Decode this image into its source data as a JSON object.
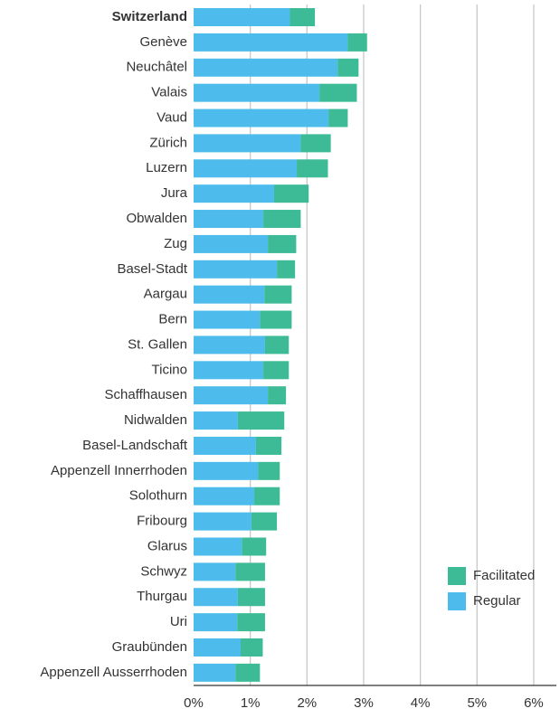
{
  "chart_data": {
    "type": "stacked_barh",
    "categories": [
      "Switzerland",
      "Genève",
      "Neuchâtel",
      "Valais",
      "Vaud",
      "Zürich",
      "Luzern",
      "Jura",
      "Obwalden",
      "Zug",
      "Basel-Stadt",
      "Aargau",
      "Bern",
      "St. Gallen",
      "Ticino",
      "Schaffhausen",
      "Nidwalden",
      "Basel-Landschaft",
      "Appenzell Innerrhoden",
      "Solothurn",
      "Fribourg",
      "Glarus",
      "Schwyz",
      "Thurgau",
      "Uri",
      "Graubünden",
      "Appenzell Ausserrhoden"
    ],
    "series": [
      {
        "name": "Regular",
        "color": "#4dbbeb",
        "values": [
          1.7,
          2.72,
          2.54,
          2.22,
          2.38,
          1.89,
          1.82,
          1.42,
          1.23,
          1.31,
          1.47,
          1.25,
          1.17,
          1.26,
          1.23,
          1.31,
          0.78,
          1.1,
          1.14,
          1.07,
          1.02,
          0.85,
          0.74,
          0.78,
          0.77,
          0.83,
          0.74
        ]
      },
      {
        "name": "Facilitated",
        "color": "#3dbb96",
        "values": [
          0.44,
          0.34,
          0.37,
          0.66,
          0.34,
          0.53,
          0.55,
          0.61,
          0.66,
          0.5,
          0.32,
          0.48,
          0.56,
          0.42,
          0.45,
          0.32,
          0.82,
          0.45,
          0.38,
          0.45,
          0.45,
          0.43,
          0.52,
          0.48,
          0.49,
          0.39,
          0.43
        ]
      }
    ],
    "xlim": [
      0,
      6.4
    ],
    "xticks": [
      {
        "value": 0,
        "label": "0%"
      },
      {
        "value": 1,
        "label": "1%"
      },
      {
        "value": 2,
        "label": "2%"
      },
      {
        "value": 3,
        "label": "3%"
      },
      {
        "value": 4,
        "label": "4%"
      },
      {
        "value": 5,
        "label": "5%"
      },
      {
        "value": 6,
        "label": "6%"
      }
    ],
    "grid": true,
    "legend": "lower right"
  }
}
